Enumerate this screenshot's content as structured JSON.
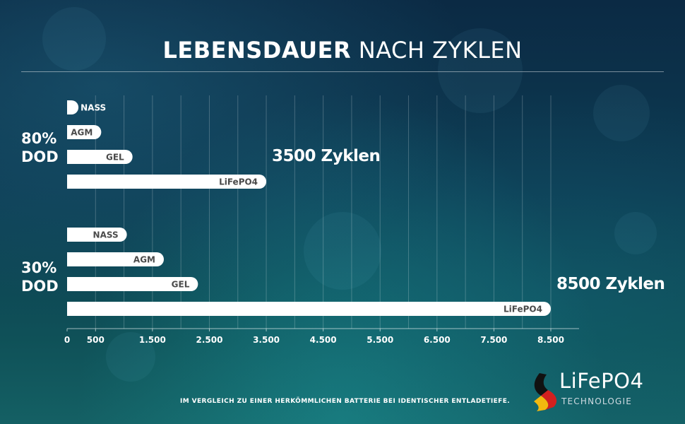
{
  "title_bold": "LEBENSDAUER",
  "title_light": "NACH ZYKLEN",
  "groups": [
    {
      "label_line1": "80%",
      "label_line2": "DOD",
      "annotation": "3500 Zyklen"
    },
    {
      "label_line1": "30%",
      "label_line2": "DOD",
      "annotation": "8500 Zyklen"
    }
  ],
  "chart_data": {
    "type": "bar",
    "orientation": "horizontal",
    "title": "LEBENSDAUER NACH ZYKLEN",
    "xlabel": "",
    "ylabel": "",
    "xlim": [
      0,
      9000
    ],
    "xticks": [
      0,
      500,
      1500,
      2500,
      3500,
      4500,
      5500,
      6500,
      7500,
      8500
    ],
    "xtick_labels": [
      "0",
      "500",
      "1.500",
      "2.500",
      "3.500",
      "4.500",
      "5.500",
      "6.500",
      "7.500",
      "8.500"
    ],
    "grid": true,
    "groups": [
      {
        "name": "80% DOD",
        "bars": [
          {
            "label": "NASS",
            "value": 200
          },
          {
            "label": "AGM",
            "value": 600
          },
          {
            "label": "GEL",
            "value": 1150
          },
          {
            "label": "LiFePO4",
            "value": 3500
          }
        ]
      },
      {
        "name": "30% DOD",
        "bars": [
          {
            "label": "NASS",
            "value": 1050
          },
          {
            "label": "AGM",
            "value": 1700
          },
          {
            "label": "GEL",
            "value": 2300
          },
          {
            "label": "LiFePO4",
            "value": 8500
          }
        ]
      }
    ]
  },
  "footer": "IM VERGLEICH ZU EINER HERKÖMMLICHEN BATTERIE BEI IDENTISCHER ENTLADETIEFE.",
  "logo": {
    "name": "LiFePO4",
    "subtitle": "TECHNOLOGIE"
  },
  "colors": {
    "bar_fill": "#ffffff",
    "bar_label": "#4a4a4a",
    "grid": "rgba(255,255,255,0.22)",
    "flag_black": "#111111",
    "flag_red": "#d3201f",
    "flag_gold": "#f2b90f"
  }
}
